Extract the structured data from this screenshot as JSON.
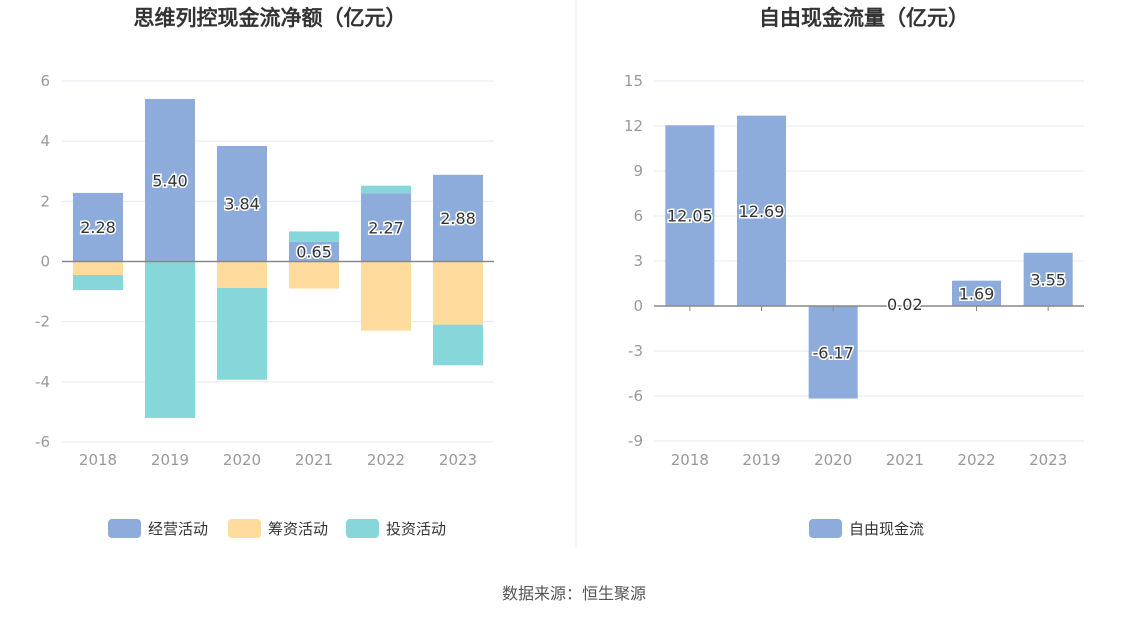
{
  "source_text": "数据来源：恒生聚源",
  "colors": {
    "operating": "#8dacdb",
    "financing": "#ffdc9e",
    "investing": "#87d6d9",
    "free_cash": "#8dacdb",
    "axis_text": "#999999",
    "grid": "#e6e8f0",
    "zero_line": "#888888",
    "title": "#333333",
    "divider": "#eeeeee"
  },
  "chart_data": [
    {
      "type": "bar",
      "stacked": true,
      "title": "思维列控现金流净额（亿元）",
      "categories": [
        "2018",
        "2019",
        "2020",
        "2021",
        "2022",
        "2023"
      ],
      "y_ticks": [
        "6",
        "4",
        "2",
        "0",
        "-2",
        "-4",
        "-6"
      ],
      "ylim": [
        -6,
        6
      ],
      "grid": true,
      "legend_position": "bottom-center",
      "series": [
        {
          "name": "经营活动",
          "color_key": "operating",
          "values": [
            2.28,
            5.4,
            3.84,
            0.65,
            2.27,
            2.88
          ],
          "labels": [
            "2.28",
            "5.40",
            "3.84",
            "0.65",
            "2.27",
            "2.88"
          ]
        },
        {
          "name": "筹资活动",
          "color_key": "financing",
          "values": [
            -0.45,
            0.0,
            -0.88,
            -0.9,
            -2.3,
            -2.1
          ],
          "labels": []
        },
        {
          "name": "投资活动",
          "color_key": "investing",
          "values": [
            -0.5,
            -5.2,
            -3.05,
            0.35,
            0.25,
            -1.35
          ],
          "labels": []
        }
      ]
    },
    {
      "type": "bar",
      "title": "自由现金流量（亿元）",
      "categories": [
        "2018",
        "2019",
        "2020",
        "2021",
        "2022",
        "2023"
      ],
      "y_ticks": [
        "15",
        "12",
        "9",
        "6",
        "3",
        "0",
        "-3",
        "-6",
        "-9"
      ],
      "ylim": [
        -9,
        15
      ],
      "grid": true,
      "legend_position": "bottom-center",
      "series": [
        {
          "name": "自由现金流",
          "color_key": "free_cash",
          "values": [
            12.05,
            12.69,
            -6.17,
            0.02,
            1.69,
            3.55
          ],
          "labels": [
            "12.05",
            "12.69",
            "-6.17",
            "0.02",
            "1.69",
            "3.55"
          ]
        }
      ]
    }
  ]
}
